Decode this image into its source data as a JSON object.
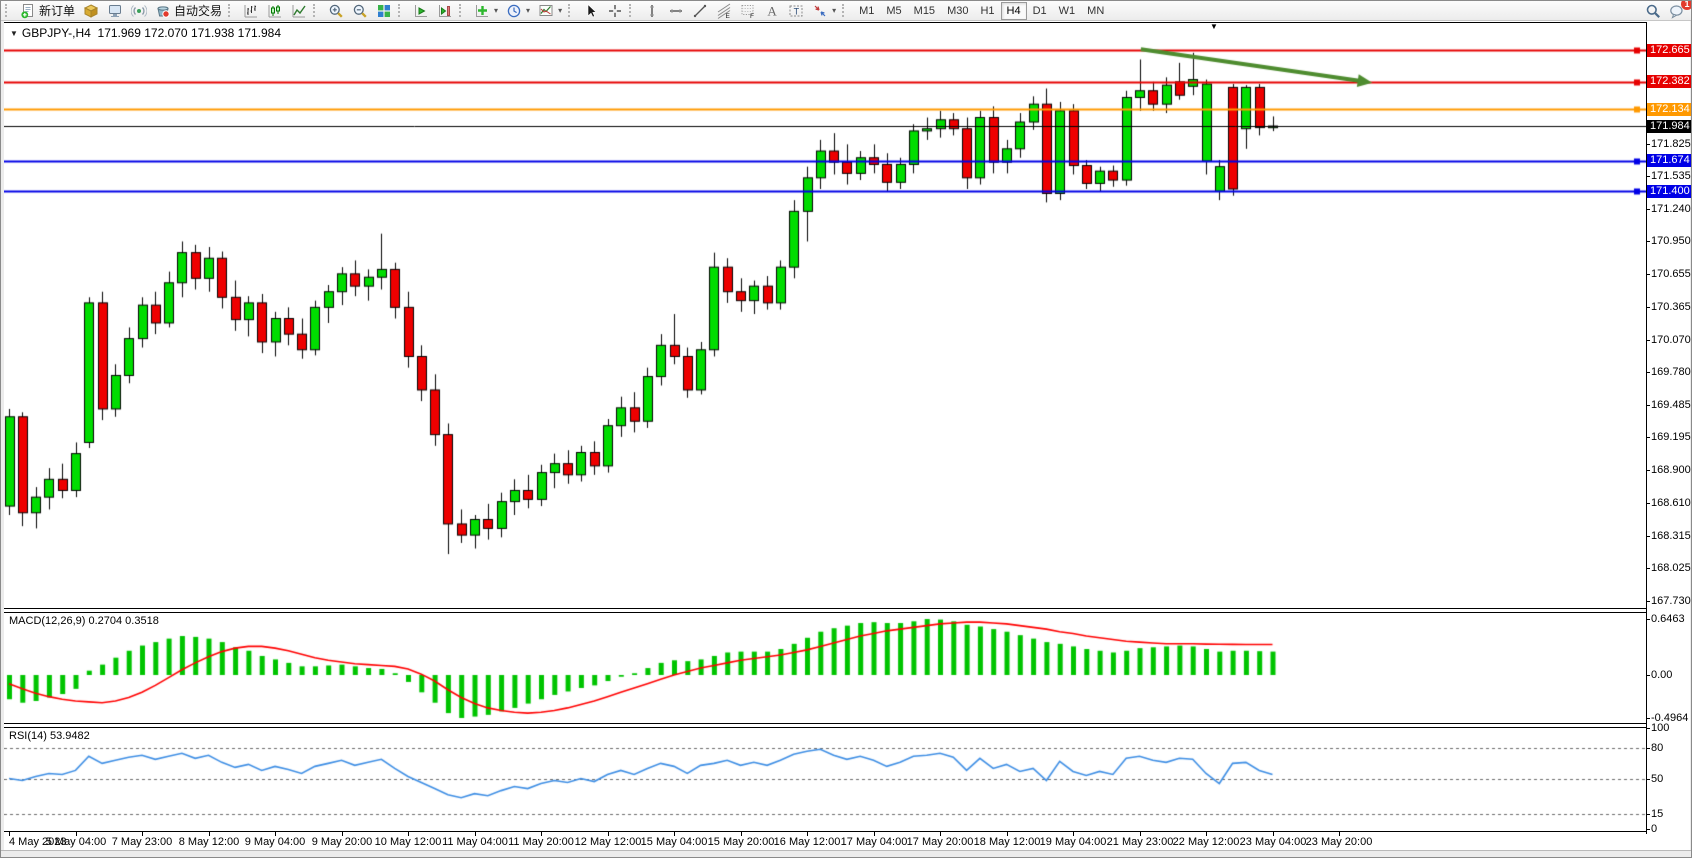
{
  "toolbar": {
    "new_order_label": "新订单",
    "autotrade_label": "自动交易",
    "groups": [
      {
        "items": [
          {
            "name": "new-order",
            "label": "新订单"
          },
          {
            "name": "market-cube"
          },
          {
            "name": "terminal"
          },
          {
            "name": "signal"
          },
          {
            "name": "autotrade",
            "label": "自动交易"
          }
        ]
      },
      {
        "items": [
          {
            "name": "bars-chart"
          },
          {
            "name": "candles-chart"
          },
          {
            "name": "line-chart"
          }
        ]
      },
      {
        "items": [
          {
            "name": "zoom-in"
          },
          {
            "name": "zoom-out"
          },
          {
            "name": "tile-windows"
          }
        ]
      },
      {
        "items": [
          {
            "name": "auto-scroll"
          },
          {
            "name": "chart-shift"
          }
        ]
      },
      {
        "items": [
          {
            "name": "indicators",
            "caret": true
          },
          {
            "name": "periods",
            "caret": true
          },
          {
            "name": "templates",
            "caret": true
          }
        ]
      },
      {
        "items": [
          {
            "name": "cursor"
          },
          {
            "name": "crosshair"
          }
        ]
      },
      {
        "items": [
          {
            "name": "vertical-line"
          },
          {
            "name": "horizontal-line"
          },
          {
            "name": "trendline"
          },
          {
            "name": "fibonacci"
          },
          {
            "name": "fibo-grid"
          },
          {
            "name": "text"
          },
          {
            "name": "text-label"
          },
          {
            "name": "arrows",
            "caret": true
          }
        ]
      }
    ],
    "timeframes": [
      "M1",
      "M5",
      "M15",
      "M30",
      "H1",
      "H4",
      "D1",
      "W1",
      "MN"
    ],
    "active_timeframe": "H4",
    "notification_count": "1"
  },
  "chart": {
    "dropdown_glyph": "▼",
    "title": "GBPJPY-,H4",
    "ohlc_text": "171.969 172.070 171.938 171.984"
  },
  "price_axis": {
    "ticks": [
      "171.825",
      "171.535",
      "171.240",
      "170.950",
      "170.655",
      "170.365",
      "170.070",
      "169.780",
      "169.485",
      "169.195",
      "168.900",
      "168.610",
      "168.315",
      "168.025",
      "167.730"
    ],
    "badges": [
      {
        "value": "172.665",
        "color": "#e60000"
      },
      {
        "value": "172.382",
        "color": "#e60000"
      },
      {
        "value": "172.134",
        "color": "#ff9900"
      },
      {
        "value": "171.984",
        "color": "#000000"
      },
      {
        "value": "171.674",
        "color": "#0000e6"
      },
      {
        "value": "171.400",
        "color": "#0000e6"
      }
    ]
  },
  "indicators": {
    "macd_label": "MACD(12,26,9) 0.2704 0.3518",
    "macd_ticks": [
      {
        "v": 0.6463,
        "label": "0.6463"
      },
      {
        "v": 0,
        "label": "0.00"
      },
      {
        "v": -0.4964,
        "label": "-0.4964"
      }
    ],
    "rsi_label": "RSI(14) 53.9482",
    "rsi_ticks": [
      {
        "v": 100,
        "label": "100"
      },
      {
        "v": 80,
        "label": "80"
      },
      {
        "v": 50,
        "label": "50"
      },
      {
        "v": 15,
        "label": "15"
      },
      {
        "v": 0,
        "label": "0"
      }
    ]
  },
  "time_axis": {
    "label_step": 5,
    "labels": [
      "4 May 2023",
      "5 May 04:00",
      "7 May 23:00",
      "8 May 12:00",
      "9 May 04:00",
      "9 May 20:00",
      "10 May 12:00",
      "11 May 04:00",
      "11 May 20:00",
      "12 May 12:00",
      "15 May 04:00",
      "15 May 20:00",
      "16 May 12:00",
      "17 May 04:00",
      "17 May 20:00",
      "18 May 12:00",
      "19 May 04:00",
      "21 May 23:00",
      "22 May 12:00",
      "23 May 04:00",
      "23 May 20:00"
    ]
  },
  "chart_data": {
    "type": "candlestick",
    "symbol": "GBPJPY-",
    "timeframe": "H4",
    "title": "GBPJPY-,H4 171.969 172.070 171.938 171.984",
    "current_ohlc": {
      "open": 171.969,
      "high": 172.07,
      "low": 171.938,
      "close": 171.984
    },
    "y_axis": {
      "min": 167.62,
      "max": 172.8
    },
    "bull_color": "#00dd00",
    "bear_color": "#ee0000",
    "wick_color": "#000000",
    "candles": [
      [
        168.58,
        169.45,
        168.5,
        169.38
      ],
      [
        169.38,
        169.42,
        168.4,
        168.52
      ],
      [
        168.52,
        168.75,
        168.38,
        168.66
      ],
      [
        168.66,
        168.92,
        168.55,
        168.82
      ],
      [
        168.82,
        168.96,
        168.65,
        168.72
      ],
      [
        168.72,
        169.15,
        168.66,
        169.05
      ],
      [
        169.15,
        170.45,
        169.1,
        170.4
      ],
      [
        170.4,
        170.5,
        169.35,
        169.45
      ],
      [
        169.45,
        169.85,
        169.38,
        169.75
      ],
      [
        169.75,
        170.18,
        169.68,
        170.08
      ],
      [
        170.08,
        170.45,
        170.0,
        170.38
      ],
      [
        170.38,
        170.5,
        170.12,
        170.22
      ],
      [
        170.22,
        170.68,
        170.18,
        170.58
      ],
      [
        170.58,
        170.95,
        170.45,
        170.85
      ],
      [
        170.85,
        170.92,
        170.52,
        170.62
      ],
      [
        170.62,
        170.9,
        170.5,
        170.8
      ],
      [
        170.8,
        170.86,
        170.35,
        170.45
      ],
      [
        170.45,
        170.6,
        170.15,
        170.25
      ],
      [
        170.25,
        170.46,
        170.1,
        170.4
      ],
      [
        170.4,
        170.48,
        169.95,
        170.05
      ],
      [
        170.05,
        170.32,
        169.92,
        170.26
      ],
      [
        170.26,
        170.36,
        170.02,
        170.12
      ],
      [
        170.12,
        170.26,
        169.9,
        169.98
      ],
      [
        169.98,
        170.42,
        169.93,
        170.36
      ],
      [
        170.36,
        170.56,
        170.22,
        170.5
      ],
      [
        170.5,
        170.72,
        170.38,
        170.66
      ],
      [
        170.66,
        170.78,
        170.46,
        170.55
      ],
      [
        170.55,
        170.7,
        170.42,
        170.63
      ],
      [
        170.63,
        171.02,
        170.52,
        170.7
      ],
      [
        170.7,
        170.76,
        170.26,
        170.36
      ],
      [
        170.36,
        170.5,
        169.82,
        169.92
      ],
      [
        169.92,
        170.02,
        169.52,
        169.62
      ],
      [
        169.62,
        169.76,
        169.12,
        169.22
      ],
      [
        169.22,
        169.32,
        168.15,
        168.42
      ],
      [
        168.42,
        168.55,
        168.25,
        168.32
      ],
      [
        168.32,
        168.5,
        168.2,
        168.46
      ],
      [
        168.46,
        168.6,
        168.28,
        168.38
      ],
      [
        168.38,
        168.7,
        168.3,
        168.62
      ],
      [
        168.62,
        168.82,
        168.5,
        168.72
      ],
      [
        168.72,
        168.86,
        168.56,
        168.64
      ],
      [
        168.64,
        168.95,
        168.58,
        168.88
      ],
      [
        168.88,
        169.05,
        168.74,
        168.96
      ],
      [
        168.96,
        169.08,
        168.78,
        168.86
      ],
      [
        168.86,
        169.12,
        168.8,
        169.06
      ],
      [
        169.06,
        169.16,
        168.86,
        168.94
      ],
      [
        168.94,
        169.36,
        168.88,
        169.3
      ],
      [
        169.3,
        169.56,
        169.2,
        169.46
      ],
      [
        169.46,
        169.6,
        169.24,
        169.34
      ],
      [
        169.34,
        169.82,
        169.28,
        169.74
      ],
      [
        169.74,
        170.12,
        169.66,
        170.02
      ],
      [
        170.02,
        170.3,
        169.85,
        169.92
      ],
      [
        169.92,
        170.0,
        169.55,
        169.62
      ],
      [
        169.62,
        170.05,
        169.58,
        169.98
      ],
      [
        169.98,
        170.85,
        169.92,
        170.72
      ],
      [
        170.72,
        170.8,
        170.4,
        170.5
      ],
      [
        170.5,
        170.62,
        170.32,
        170.42
      ],
      [
        170.42,
        170.6,
        170.3,
        170.55
      ],
      [
        170.55,
        170.64,
        170.34,
        170.4
      ],
      [
        170.4,
        170.78,
        170.34,
        170.72
      ],
      [
        170.72,
        171.32,
        170.62,
        171.22
      ],
      [
        171.22,
        171.62,
        170.95,
        171.52
      ],
      [
        171.52,
        171.86,
        171.42,
        171.76
      ],
      [
        171.76,
        171.92,
        171.55,
        171.66
      ],
      [
        171.66,
        171.82,
        171.46,
        171.56
      ],
      [
        171.56,
        171.76,
        171.5,
        171.7
      ],
      [
        171.7,
        171.82,
        171.56,
        171.64
      ],
      [
        171.64,
        171.74,
        171.4,
        171.48
      ],
      [
        171.48,
        171.7,
        171.42,
        171.64
      ],
      [
        171.64,
        172.0,
        171.56,
        171.94
      ],
      [
        171.94,
        172.06,
        171.86,
        171.96
      ],
      [
        171.96,
        172.12,
        171.88,
        172.04
      ],
      [
        172.04,
        172.1,
        171.9,
        171.96
      ],
      [
        171.96,
        172.06,
        171.42,
        171.52
      ],
      [
        171.52,
        172.12,
        171.46,
        172.06
      ],
      [
        172.06,
        172.16,
        171.56,
        171.66
      ],
      [
        171.66,
        171.86,
        171.56,
        171.78
      ],
      [
        171.78,
        172.1,
        171.7,
        172.02
      ],
      [
        172.02,
        172.25,
        171.95,
        172.18
      ],
      [
        172.18,
        172.32,
        171.3,
        171.38
      ],
      [
        171.38,
        172.2,
        171.32,
        172.12
      ],
      [
        172.12,
        172.18,
        171.55,
        171.63
      ],
      [
        171.63,
        171.68,
        171.42,
        171.47
      ],
      [
        171.47,
        171.62,
        171.4,
        171.58
      ],
      [
        171.58,
        171.63,
        171.44,
        171.5
      ],
      [
        171.5,
        172.3,
        171.45,
        172.24
      ],
      [
        172.24,
        172.58,
        172.12,
        172.3
      ],
      [
        172.3,
        172.38,
        172.12,
        172.18
      ],
      [
        172.18,
        172.42,
        172.1,
        172.35
      ],
      [
        172.38,
        172.55,
        172.22,
        172.26
      ],
      [
        172.34,
        172.64,
        172.26,
        172.4
      ],
      [
        171.67,
        172.4,
        171.55,
        172.36
      ],
      [
        171.4,
        171.68,
        171.32,
        171.62
      ],
      [
        172.33,
        172.36,
        171.36,
        171.42
      ],
      [
        171.96,
        172.35,
        171.78,
        172.33
      ],
      [
        172.33,
        172.36,
        171.9,
        171.97
      ],
      [
        171.969,
        172.07,
        171.938,
        171.984
      ]
    ],
    "hlines": [
      {
        "price": 172.665,
        "color": "#e60000"
      },
      {
        "price": 172.382,
        "color": "#e60000"
      },
      {
        "price": 172.134,
        "color": "#ff9900"
      },
      {
        "price": 171.674,
        "color": "#0000e6"
      },
      {
        "price": 171.4,
        "color": "#0000e6"
      }
    ],
    "current_price_line": {
      "price": 171.984,
      "color": "#000000"
    },
    "trend_arrow": {
      "x1_index": 85.1,
      "y1_price": 172.672,
      "x2_index": 102.5,
      "y2_price": 172.372,
      "color": "#4e8c2f"
    },
    "macd": {
      "params": "12,26,9",
      "last_main": 0.2704,
      "last_signal": 0.3518,
      "range": [
        -0.4964,
        0.6463
      ],
      "histogram": [
        -0.28,
        -0.32,
        -0.3,
        -0.26,
        -0.22,
        -0.16,
        0.05,
        0.12,
        0.2,
        0.28,
        0.34,
        0.38,
        0.42,
        0.45,
        0.44,
        0.42,
        0.38,
        0.32,
        0.28,
        0.22,
        0.18,
        0.14,
        0.1,
        0.1,
        0.11,
        0.12,
        0.1,
        0.08,
        0.07,
        0.02,
        -0.08,
        -0.2,
        -0.32,
        -0.44,
        -0.4964,
        -0.48,
        -0.46,
        -0.42,
        -0.38,
        -0.33,
        -0.28,
        -0.23,
        -0.19,
        -0.15,
        -0.12,
        -0.07,
        -0.02,
        0.02,
        0.08,
        0.14,
        0.17,
        0.16,
        0.18,
        0.22,
        0.26,
        0.27,
        0.27,
        0.27,
        0.3,
        0.36,
        0.43,
        0.5,
        0.54,
        0.57,
        0.6,
        0.61,
        0.6,
        0.6,
        0.62,
        0.6463,
        0.64,
        0.62,
        0.58,
        0.56,
        0.53,
        0.5,
        0.46,
        0.42,
        0.38,
        0.36,
        0.33,
        0.3,
        0.28,
        0.26,
        0.28,
        0.31,
        0.32,
        0.33,
        0.34,
        0.33,
        0.3,
        0.27,
        0.28,
        0.28,
        0.275,
        0.2704
      ],
      "signal": [
        -0.1,
        -0.16,
        -0.21,
        -0.25,
        -0.28,
        -0.3,
        -0.31,
        -0.32,
        -0.3,
        -0.26,
        -0.2,
        -0.12,
        -0.03,
        0.06,
        0.14,
        0.21,
        0.27,
        0.31,
        0.33,
        0.33,
        0.31,
        0.28,
        0.24,
        0.2,
        0.17,
        0.15,
        0.13,
        0.12,
        0.11,
        0.1,
        0.07,
        0.01,
        -0.07,
        -0.17,
        -0.26,
        -0.33,
        -0.38,
        -0.41,
        -0.43,
        -0.44,
        -0.43,
        -0.41,
        -0.38,
        -0.34,
        -0.3,
        -0.25,
        -0.2,
        -0.15,
        -0.1,
        -0.05,
        0.0,
        0.04,
        0.08,
        0.11,
        0.14,
        0.17,
        0.19,
        0.21,
        0.23,
        0.26,
        0.29,
        0.33,
        0.37,
        0.41,
        0.45,
        0.48,
        0.51,
        0.53,
        0.55,
        0.57,
        0.59,
        0.6,
        0.61,
        0.61,
        0.6,
        0.59,
        0.57,
        0.55,
        0.53,
        0.5,
        0.48,
        0.45,
        0.43,
        0.41,
        0.39,
        0.38,
        0.37,
        0.36,
        0.36,
        0.36,
        0.357,
        0.355,
        0.354,
        0.353,
        0.352,
        0.3518
      ],
      "hist_color": "#00c400",
      "signal_color": "#ff0000"
    },
    "rsi": {
      "period": 14,
      "last": 53.9482,
      "levels": [
        80,
        50,
        15
      ],
      "range": [
        0,
        100
      ],
      "line_color": "#3e8ee4",
      "values": [
        50,
        48,
        52,
        55,
        54,
        58,
        72,
        65,
        68,
        71,
        73,
        69,
        72,
        75,
        70,
        73,
        66,
        61,
        64,
        58,
        62,
        59,
        55,
        62,
        65,
        68,
        63,
        66,
        69,
        60,
        52,
        46,
        40,
        34,
        31,
        35,
        33,
        38,
        42,
        40,
        45,
        48,
        46,
        50,
        47,
        54,
        58,
        54,
        60,
        65,
        62,
        55,
        63,
        65,
        68,
        63,
        66,
        63,
        68,
        74,
        77,
        79,
        73,
        69,
        72,
        68,
        62,
        66,
        72,
        73,
        75,
        71,
        58,
        70,
        60,
        64,
        57,
        60,
        48,
        67,
        57,
        53,
        57,
        54,
        70,
        72,
        68,
        66,
        70,
        69,
        55,
        45,
        65,
        66,
        58,
        53.9
      ]
    }
  }
}
